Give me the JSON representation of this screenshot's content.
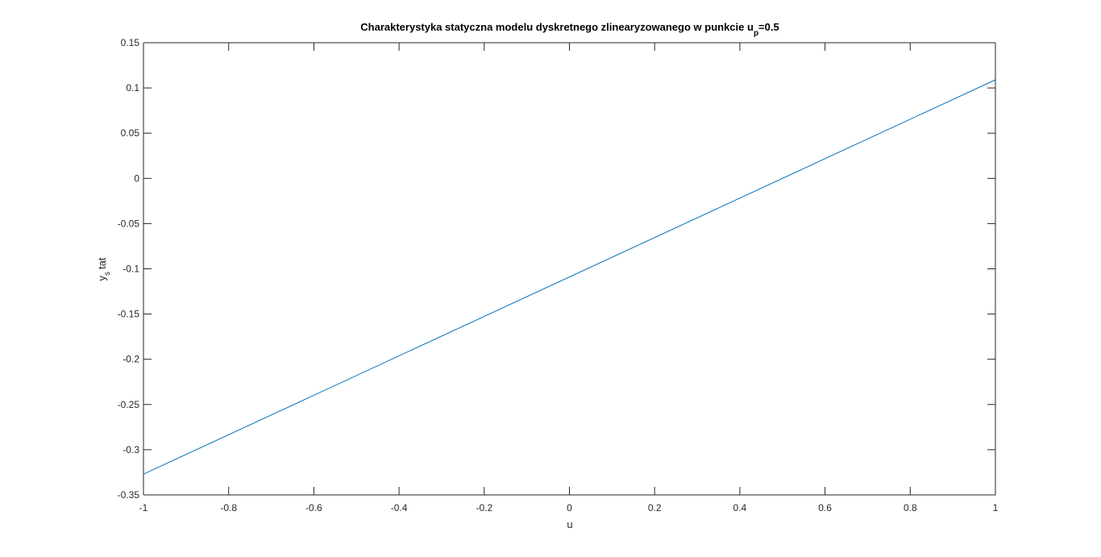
{
  "chart_data": {
    "type": "line",
    "title": {
      "main": "Charakterystyka statyczna modelu dyskretnego zlinearyzowanego w punkcie u",
      "sub": "p",
      "suffix": "=0.5"
    },
    "xlabel": "u",
    "ylabel": {
      "main": "y",
      "sub": "s",
      "suffix": "tat"
    },
    "xlim": [
      -1,
      1
    ],
    "ylim": [
      -0.35,
      0.15
    ],
    "xticks": [
      -1,
      -0.8,
      -0.6,
      -0.4,
      -0.2,
      0,
      0.2,
      0.4,
      0.6,
      0.8,
      1
    ],
    "xtick_labels": [
      "-1",
      "-0.8",
      "-0.6",
      "-0.4",
      "-0.2",
      "0",
      "0.2",
      "0.4",
      "0.6",
      "0.8",
      "1"
    ],
    "yticks": [
      -0.35,
      -0.3,
      -0.25,
      -0.2,
      -0.15,
      -0.1,
      -0.05,
      0,
      0.05,
      0.1,
      0.15
    ],
    "ytick_labels": [
      "-0.35",
      "-0.3",
      "-0.25",
      "-0.2",
      "-0.15",
      "-0.1",
      "-0.05",
      "0",
      "0.05",
      "0.1",
      "0.15"
    ],
    "grid": false,
    "series": [
      {
        "color": "#0072bd",
        "x": [
          -1,
          1
        ],
        "y": [
          -0.327,
          0.109
        ]
      }
    ]
  }
}
